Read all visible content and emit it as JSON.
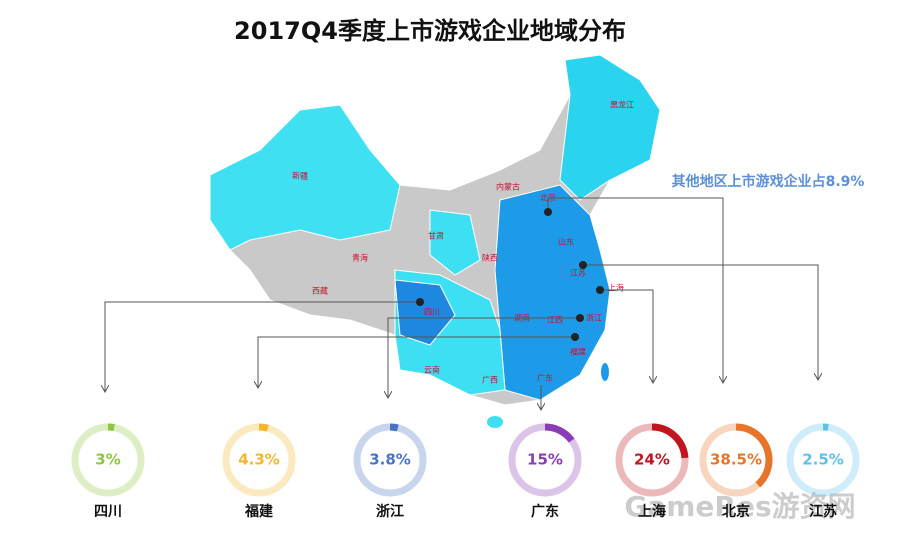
{
  "chart_data": {
    "type": "gauge",
    "title": "2017Q4季度上市游戏企业地域分布",
    "annotation": "其他地区上市游戏企业占8.9%",
    "categories": [
      "四川",
      "福建",
      "浙江",
      "广东",
      "上海",
      "北京",
      "江苏"
    ],
    "values": [
      3,
      4.3,
      3.8,
      15,
      24,
      38.5,
      2.5
    ],
    "value_labels": [
      "3%",
      "4.3%",
      "3.8%",
      "15%",
      "24%",
      "38.5%",
      "2.5%"
    ],
    "colors": [
      "#8dc63f",
      "#f2b62f",
      "#4a74c2",
      "#8b3db5",
      "#c0161f",
      "#e8742a",
      "#5ec1ec"
    ],
    "ylim": [
      0,
      100
    ]
  },
  "map_labels": [
    "新疆",
    "西藏",
    "青海",
    "甘肃",
    "内蒙古",
    "四川",
    "云南",
    "广西",
    "广东",
    "福建",
    "浙江",
    "上海",
    "江苏",
    "山东",
    "北京",
    "黑龙江",
    "陕西",
    "湖南",
    "江西"
  ],
  "watermark": "GameRes游资网"
}
